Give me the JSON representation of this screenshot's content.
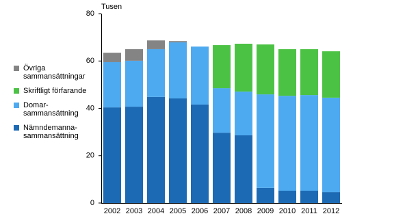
{
  "chart_data": {
    "type": "stacked_bar",
    "y_label": "Tusen",
    "categories": [
      "2002",
      "2003",
      "2004",
      "2005",
      "2006",
      "2007",
      "2008",
      "2009",
      "2010",
      "2011",
      "2012"
    ],
    "series": [
      {
        "name": "Nämndemanna-sammansättning",
        "color": "#1c6ab4",
        "values": [
          40.4,
          40.7,
          44.8,
          44.2,
          41.6,
          29.7,
          28.6,
          6.4,
          5.2,
          5.2,
          4.6
        ]
      },
      {
        "name": "Domar-sammansättning",
        "color": "#4eaaf0",
        "values": [
          19.1,
          19.4,
          20.2,
          23.7,
          24.5,
          18.8,
          18.5,
          39.5,
          40.1,
          40.4,
          39.9
        ]
      },
      {
        "name": "Skriftligt förfarande",
        "color": "#4cc244",
        "values": [
          null,
          null,
          null,
          null,
          null,
          18.2,
          20.2,
          21.1,
          19.7,
          19.4,
          19.6
        ]
      },
      {
        "name": "Övriga sammansättningar",
        "color": "#848484",
        "values": [
          4.0,
          4.9,
          3.7,
          0.5,
          null,
          null,
          null,
          null,
          null,
          null,
          null
        ]
      }
    ],
    "ylim": [
      0,
      80
    ],
    "yticks": [
      0,
      20,
      40,
      60,
      80
    ],
    "grid": false
  }
}
